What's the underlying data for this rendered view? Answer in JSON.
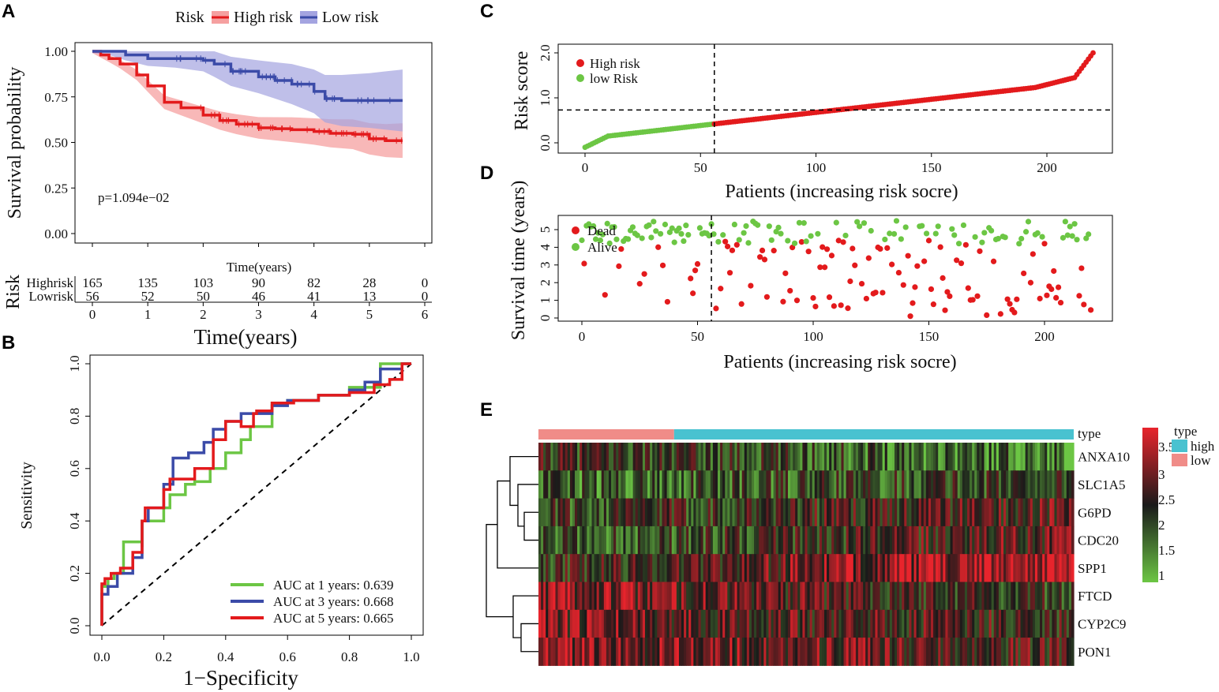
{
  "panels": {
    "a": {
      "label": "A"
    },
    "b": {
      "label": "B"
    },
    "c": {
      "label": "C"
    },
    "d": {
      "label": "D"
    },
    "e": {
      "label": "E"
    }
  },
  "colors": {
    "high": "#e31a1c",
    "low": "#3b4ba8",
    "green": "#6cc644",
    "cyan": "#49c2d0",
    "salmon": "#f08c88"
  },
  "chart_data": [
    {
      "id": "km",
      "type": "line",
      "title": "",
      "legend_title": "Risk",
      "legend": [
        "High risk",
        "Low risk"
      ],
      "xlabel": "Time(years)",
      "ylabel": "Survival probability",
      "xlim": [
        0,
        6
      ],
      "ylim": [
        0,
        1
      ],
      "yticks": [
        "0.00",
        "0.25",
        "0.50",
        "0.75",
        "1.00"
      ],
      "xticks": [
        "0",
        "1",
        "2",
        "3",
        "4",
        "5",
        "6"
      ],
      "pvalue": "p=1.094e−02",
      "series": [
        {
          "name": "High risk",
          "x": [
            0,
            0.15,
            0.3,
            0.5,
            0.8,
            1.0,
            1.3,
            1.6,
            2.0,
            2.3,
            2.6,
            3.0,
            3.3,
            3.6,
            4.0,
            4.3,
            4.7,
            5.0,
            5.3,
            5.6
          ],
          "y": [
            1.0,
            0.98,
            0.96,
            0.93,
            0.87,
            0.81,
            0.72,
            0.69,
            0.65,
            0.62,
            0.6,
            0.58,
            0.575,
            0.57,
            0.56,
            0.55,
            0.545,
            0.52,
            0.51,
            0.51
          ]
        },
        {
          "name": "Low risk",
          "x": [
            0,
            0.3,
            0.6,
            1.0,
            1.5,
            2.0,
            2.2,
            2.5,
            3.0,
            3.3,
            3.6,
            4.0,
            4.2,
            4.5,
            5.0,
            5.3,
            5.6
          ],
          "y": [
            1.0,
            1.0,
            0.98,
            0.96,
            0.96,
            0.95,
            0.93,
            0.89,
            0.86,
            0.84,
            0.82,
            0.78,
            0.74,
            0.73,
            0.73,
            0.73,
            0.73
          ]
        }
      ],
      "risk_table": {
        "title": "Risk",
        "xlabel": "Time(years)",
        "rows": [
          {
            "label": "Highrisk",
            "values": [
              "165",
              "135",
              "103",
              "90",
              "82",
              "28",
              "0"
            ]
          },
          {
            "label": "Lowrisk",
            "values": [
              "56",
              "52",
              "50",
              "46",
              "41",
              "13",
              "0"
            ]
          }
        ],
        "xlabel2": "Time(years)"
      }
    },
    {
      "id": "roc",
      "type": "line",
      "xlabel": "1−Specificity",
      "ylabel": "Sensitivity",
      "xlim": [
        0,
        1
      ],
      "ylim": [
        0,
        1
      ],
      "xticks": [
        "0.0",
        "0.2",
        "0.4",
        "0.6",
        "0.8",
        "1.0"
      ],
      "yticks": [
        "0.0",
        "0.2",
        "0.4",
        "0.6",
        "0.8",
        "1.0"
      ],
      "series": [
        {
          "name": "AUC at 1 years: 0.639",
          "color": "#6cc644",
          "x": [
            0,
            0.02,
            0.04,
            0.07,
            0.07,
            0.13,
            0.13,
            0.2,
            0.22,
            0.27,
            0.3,
            0.35,
            0.4,
            0.45,
            0.48,
            0.55,
            0.6,
            0.7,
            0.8,
            0.9,
            1.0
          ],
          "y": [
            0,
            0.15,
            0.18,
            0.2,
            0.32,
            0.32,
            0.3,
            0.4,
            0.45,
            0.5,
            0.54,
            0.55,
            0.6,
            0.66,
            0.71,
            0.76,
            0.85,
            0.86,
            0.88,
            0.91,
            1.0
          ]
        },
        {
          "name": "AUC at 3 years: 0.668",
          "color": "#3b4ba8",
          "x": [
            0,
            0.02,
            0.05,
            0.1,
            0.13,
            0.15,
            0.2,
            0.23,
            0.28,
            0.33,
            0.36,
            0.4,
            0.45,
            0.55,
            0.6,
            0.7,
            0.8,
            0.85,
            0.9,
            0.97,
            1.0
          ],
          "y": [
            0,
            0.12,
            0.15,
            0.2,
            0.26,
            0.4,
            0.45,
            0.54,
            0.64,
            0.66,
            0.7,
            0.75,
            0.78,
            0.81,
            0.84,
            0.86,
            0.88,
            0.9,
            0.93,
            0.98,
            1.0
          ]
        },
        {
          "name": "AUC at 5 years: 0.665",
          "color": "#e31a1c",
          "x": [
            0,
            0.01,
            0.03,
            0.06,
            0.1,
            0.13,
            0.14,
            0.2,
            0.22,
            0.3,
            0.36,
            0.4,
            0.45,
            0.49,
            0.5,
            0.55,
            0.62,
            0.7,
            0.8,
            0.88,
            0.93,
            0.97,
            1.0
          ],
          "y": [
            0,
            0.16,
            0.18,
            0.2,
            0.22,
            0.28,
            0.4,
            0.45,
            0.52,
            0.56,
            0.6,
            0.71,
            0.78,
            0.76,
            0.81,
            0.82,
            0.85,
            0.86,
            0.88,
            0.89,
            0.92,
            0.94,
            1.0
          ]
        }
      ]
    },
    {
      "id": "risk",
      "type": "scatter",
      "xlabel": "Patients (increasing risk socre)",
      "ylabel": "Risk score",
      "xlim": [
        -7,
        228
      ],
      "ylim": [
        -0.15,
        2.15
      ],
      "xticks": [
        "0",
        "50",
        "100",
        "150",
        "200"
      ],
      "yticks": [
        "0.0",
        "1.0",
        "2.0"
      ],
      "cutoff_x": 56,
      "cutoff_y": 0.73,
      "n": 221,
      "legend": [
        "High risk",
        "low Risk"
      ]
    },
    {
      "id": "surv",
      "type": "scatter",
      "xlabel": "Patients (increasing risk socre)",
      "ylabel": "Survival time (years)",
      "xlim": [
        -7,
        228
      ],
      "ylim": [
        -0.1,
        5.7
      ],
      "xticks": [
        "0",
        "50",
        "100",
        "150",
        "200"
      ],
      "yticks": [
        "0",
        "1",
        "2",
        "3",
        "4",
        "5"
      ],
      "cutoff_x": 56,
      "legend": [
        "Dead",
        "Alive"
      ]
    },
    {
      "id": "heatmap",
      "type": "heatmap",
      "genes": [
        "ANXA10",
        "SLC1A5",
        "G6PD",
        "CDC20",
        "SPP1",
        "FTCD",
        "CYP2C9",
        "PON1"
      ],
      "annotation_label": "type",
      "legend_title": "type",
      "legend_types": [
        "high",
        "low"
      ],
      "color_scale_ticks": [
        "3.5",
        "3",
        "2.5",
        "2",
        "1.5",
        "1"
      ],
      "n_low": 56,
      "n_high": 165
    }
  ]
}
